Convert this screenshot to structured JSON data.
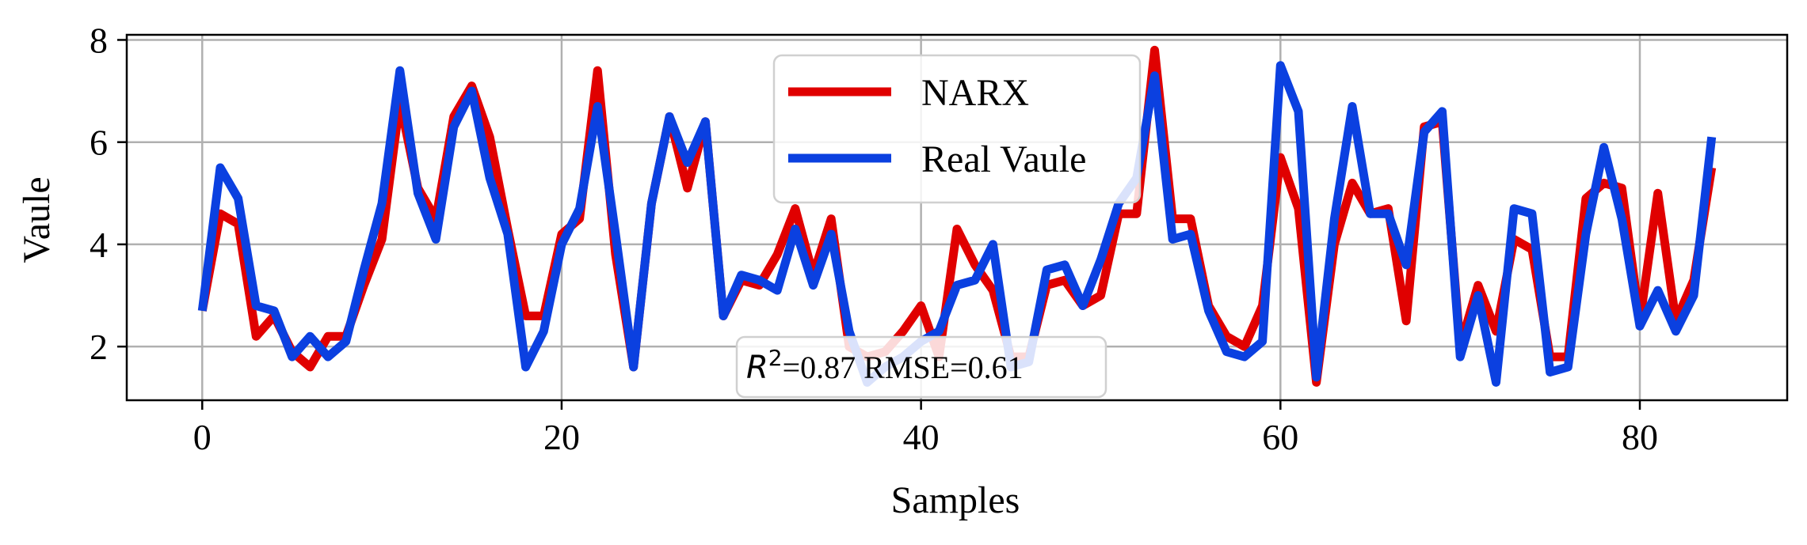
{
  "chart_data": {
    "type": "line",
    "title": "",
    "xlabel": "Samples",
    "ylabel": "Vaule",
    "xlim": [
      -4.2,
      88.2
    ],
    "ylim": [
      0.95,
      8.1
    ],
    "xticks": [
      0,
      20,
      40,
      60,
      80
    ],
    "yticks": [
      2,
      4,
      6,
      8
    ],
    "grid": true,
    "legend_position": "top-center",
    "annotation": {
      "r2_symbol": "R",
      "r2_exponent": "2",
      "text": "=0.87 RMSE=0.61",
      "position": "bottom-center"
    },
    "x": [
      0,
      1,
      2,
      3,
      4,
      5,
      6,
      7,
      8,
      9,
      10,
      11,
      12,
      13,
      14,
      15,
      16,
      17,
      18,
      19,
      20,
      21,
      22,
      23,
      24,
      25,
      26,
      27,
      28,
      29,
      30,
      31,
      32,
      33,
      34,
      35,
      36,
      37,
      38,
      39,
      40,
      41,
      42,
      43,
      44,
      45,
      46,
      47,
      48,
      49,
      50,
      51,
      52,
      53,
      54,
      55,
      56,
      57,
      58,
      59,
      60,
      61,
      62,
      63,
      64,
      65,
      66,
      67,
      68,
      69,
      70,
      71,
      72,
      73,
      74,
      75,
      76,
      77,
      78,
      79,
      80,
      81,
      82,
      83,
      84
    ],
    "series": [
      {
        "name": "NARX",
        "color": "#e00000",
        "values": [
          2.7,
          4.6,
          4.4,
          2.2,
          2.6,
          1.9,
          1.6,
          2.2,
          2.2,
          3.2,
          4.1,
          6.8,
          5.1,
          4.5,
          6.5,
          7.1,
          6.1,
          4.3,
          2.6,
          2.6,
          4.2,
          4.5,
          7.4,
          3.8,
          1.6,
          4.8,
          6.5,
          5.1,
          6.4,
          2.6,
          3.3,
          3.2,
          3.8,
          4.7,
          3.4,
          4.5,
          2.0,
          1.8,
          1.9,
          2.3,
          2.8,
          1.8,
          4.3,
          3.6,
          3.1,
          1.8,
          1.8,
          3.2,
          3.3,
          2.8,
          3.0,
          4.6,
          4.6,
          7.8,
          4.5,
          4.5,
          2.8,
          2.2,
          2.0,
          2.8,
          5.7,
          4.7,
          1.3,
          4.0,
          5.2,
          4.6,
          4.7,
          2.5,
          6.3,
          6.4,
          2.0,
          3.2,
          2.3,
          4.1,
          3.9,
          1.8,
          1.8,
          4.9,
          5.2,
          5.1,
          2.5,
          5.0,
          2.5,
          3.3,
          5.5
        ]
      },
      {
        "name": "Real Vaule",
        "color": "#0b40e0",
        "values": [
          2.7,
          5.5,
          4.9,
          2.8,
          2.7,
          1.8,
          2.2,
          1.8,
          2.1,
          3.5,
          4.8,
          7.4,
          5.0,
          4.1,
          6.3,
          7.0,
          5.3,
          4.2,
          1.6,
          2.3,
          4.0,
          4.7,
          6.7,
          4.2,
          1.6,
          4.8,
          6.5,
          5.6,
          6.4,
          2.6,
          3.4,
          3.3,
          3.1,
          4.3,
          3.2,
          4.2,
          2.3,
          1.3,
          1.6,
          1.8,
          2.1,
          2.3,
          3.2,
          3.3,
          4.0,
          1.6,
          1.7,
          3.5,
          3.6,
          2.8,
          3.7,
          4.8,
          5.3,
          7.3,
          4.1,
          4.2,
          2.7,
          1.9,
          1.8,
          2.1,
          7.5,
          6.6,
          1.4,
          4.5,
          6.7,
          4.6,
          4.6,
          3.6,
          6.2,
          6.6,
          1.8,
          3.0,
          1.3,
          4.7,
          4.6,
          1.5,
          1.6,
          4.2,
          5.9,
          4.5,
          2.4,
          3.1,
          2.3,
          3.0,
          6.1
        ]
      }
    ]
  }
}
